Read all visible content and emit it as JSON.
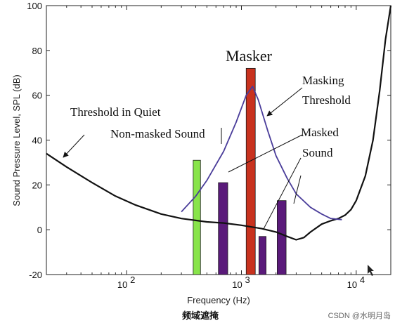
{
  "chart_data": {
    "type": "line",
    "xlabel": "Frequency (Hz)",
    "ylabel": "Sound Pressure Level, SPL (dB)",
    "xscale": "log",
    "xlim": [
      20,
      20000
    ],
    "ylim": [
      -20,
      100
    ],
    "yticks": [
      "-20",
      "0",
      "20",
      "40",
      "60",
      "80",
      "100"
    ],
    "xticks": [
      {
        "value": 100,
        "base": "10",
        "exp": "2"
      },
      {
        "value": 1000,
        "base": "10",
        "exp": "3"
      },
      {
        "value": 10000,
        "base": "10",
        "exp": "4"
      }
    ],
    "series": [
      {
        "name": "Threshold in Quiet",
        "color": "#111111",
        "x": [
          20,
          30,
          50,
          80,
          120,
          200,
          300,
          500,
          700,
          1000,
          1500,
          2000,
          2500,
          3000,
          3500,
          4000,
          5000,
          6000,
          7000,
          8000,
          9000,
          10000,
          12000,
          14000,
          16000,
          18000,
          20000
        ],
        "y": [
          34,
          28,
          21,
          15,
          11,
          7,
          5,
          3.5,
          3,
          2,
          0.5,
          -1,
          -3,
          -4.5,
          -3.5,
          -1,
          2.5,
          4,
          5,
          6.5,
          9,
          13,
          24,
          40,
          62,
          85,
          100
        ]
      },
      {
        "name": "Masking Threshold",
        "color": "#4a3d9a",
        "x": [
          300,
          400,
          500,
          700,
          900,
          1100,
          1250,
          1400,
          1700,
          2000,
          2500,
          3000,
          4000,
          5000,
          6000,
          7500
        ],
        "y": [
          8,
          15,
          22,
          35,
          48,
          60,
          64,
          58,
          44,
          33,
          23,
          16,
          10,
          7,
          5,
          4.5
        ]
      }
    ],
    "bars": [
      {
        "name": "Non-masked Sound",
        "x_lo": 380,
        "x_hi": 440,
        "value": 31,
        "color": "#88e44a"
      },
      {
        "name": "Masked Sound",
        "x_lo": 630,
        "x_hi": 760,
        "value": 21,
        "color": "#5a1a7a"
      },
      {
        "name": "Masker",
        "x_lo": 1100,
        "x_hi": 1320,
        "value": 72,
        "color": "#c8321e"
      },
      {
        "name": "Masked Sound",
        "x_lo": 1420,
        "x_hi": 1640,
        "value": -3,
        "color": "#5a1a7a"
      },
      {
        "name": "Masked Sound",
        "x_lo": 2050,
        "x_hi": 2450,
        "value": 13,
        "color": "#5a1a7a"
      }
    ],
    "annotations": {
      "masker": "Masker",
      "masking_threshold_line1": "Masking",
      "masking_threshold_line2": "Threshold",
      "threshold_in_quiet": "Threshold in Quiet",
      "non_masked_sound": "Non-masked Sound",
      "masked_sound_line1": "Masked",
      "masked_sound_line2": "Sound"
    }
  },
  "caption": "频域遮掩",
  "watermark": "CSDN @水明月岛"
}
